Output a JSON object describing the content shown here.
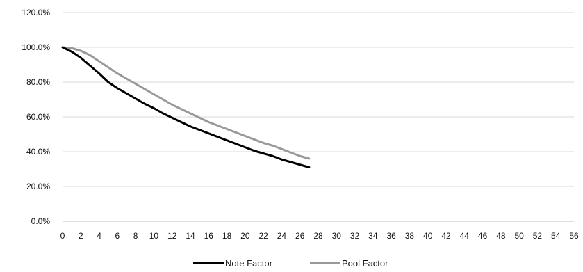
{
  "chart_data": {
    "type": "line",
    "title": "",
    "xlabel": "",
    "ylabel": "",
    "xlim": [
      0,
      56
    ],
    "ylim": [
      0,
      120
    ],
    "x_ticks": [
      "0",
      "2",
      "4",
      "6",
      "8",
      "10",
      "12",
      "14",
      "16",
      "18",
      "20",
      "22",
      "24",
      "26",
      "28",
      "30",
      "32",
      "34",
      "36",
      "38",
      "40",
      "42",
      "44",
      "46",
      "48",
      "50",
      "52",
      "54",
      "56"
    ],
    "y_ticks": [
      "0.0%",
      "20.0%",
      "40.0%",
      "60.0%",
      "80.0%",
      "100.0%",
      "120.0%"
    ],
    "grid": "horizontal",
    "legend_position": "bottom",
    "series": [
      {
        "name": "Note Factor",
        "color": "#000000",
        "x": [
          0,
          1,
          2,
          3,
          4,
          5,
          6,
          7,
          8,
          9,
          10,
          11,
          12,
          13,
          14,
          15,
          16,
          17,
          18,
          19,
          20,
          21,
          22,
          23,
          24,
          25,
          26,
          27
        ],
        "y": [
          100,
          97.5,
          94,
          89.5,
          85,
          80,
          76.5,
          73.5,
          70.5,
          67.5,
          65,
          62,
          59.5,
          57,
          54.5,
          52.5,
          50.5,
          48.5,
          46.5,
          44.5,
          42.5,
          40.5,
          39,
          37.5,
          35.5,
          34,
          32.5,
          31
        ]
      },
      {
        "name": "Pool Factor",
        "color": "#999999",
        "x": [
          0,
          1,
          2,
          3,
          4,
          5,
          6,
          7,
          8,
          9,
          10,
          11,
          12,
          13,
          14,
          15,
          16,
          17,
          18,
          19,
          20,
          21,
          22,
          23,
          24,
          25,
          26,
          27
        ],
        "y": [
          100,
          99.5,
          98,
          95.5,
          92,
          88.5,
          85,
          82,
          79,
          76,
          73,
          70,
          67,
          64.5,
          62,
          59.5,
          57,
          55,
          53,
          51,
          49,
          47,
          45,
          43.5,
          41.5,
          39.5,
          37.5,
          36
        ]
      }
    ]
  }
}
